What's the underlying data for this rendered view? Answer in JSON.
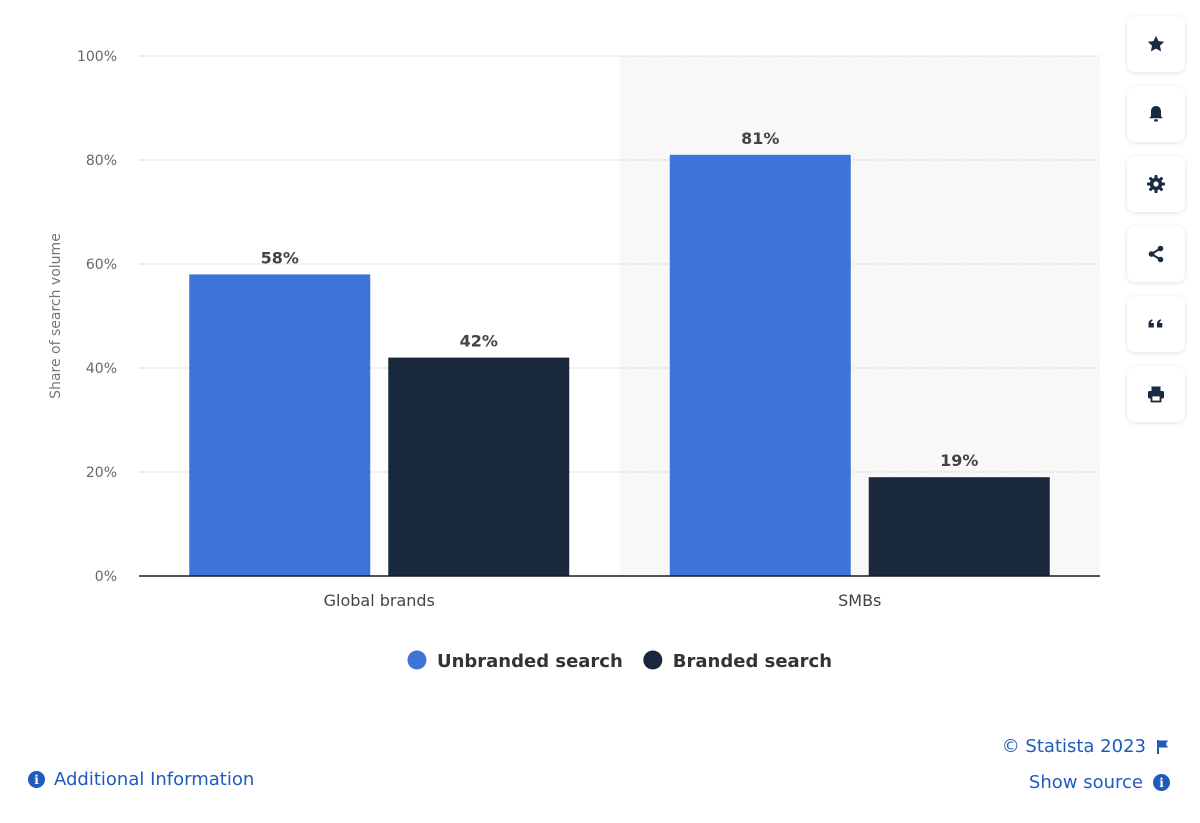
{
  "chart_data": {
    "type": "bar",
    "categories": [
      "Global brands",
      "SMBs"
    ],
    "series": [
      {
        "name": "Unbranded search",
        "values": [
          58,
          81
        ],
        "color": "#3e74d9"
      },
      {
        "name": "Branded search",
        "values": [
          42,
          19
        ],
        "color": "#19283d"
      }
    ],
    "value_suffix": "%",
    "ylabel": "Share of search volume",
    "ylim": [
      0,
      100
    ],
    "yticks": [
      "0%",
      "20%",
      "40%",
      "60%",
      "80%",
      "100%"
    ],
    "grid": true,
    "legend_position": "bottom-center",
    "highlight_category": "SMBs"
  },
  "sidebar": {
    "icons": [
      "star-icon",
      "bell-icon",
      "gear-icon",
      "share-icon",
      "quote-icon",
      "print-icon"
    ]
  },
  "footer": {
    "additional_info": "Additional Information",
    "copyright": "© Statista 2023",
    "show_source": "Show source"
  }
}
